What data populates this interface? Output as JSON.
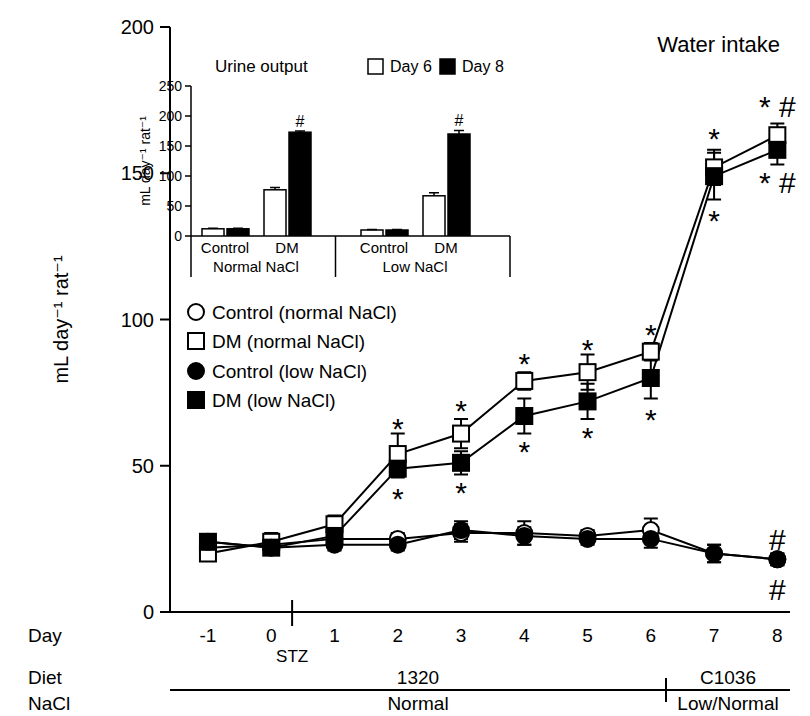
{
  "chart_data": [
    {
      "type": "line",
      "title": "Water intake",
      "y_label": "mL day⁻¹ rat⁻¹",
      "x_label": "Day",
      "x": [
        -1,
        0,
        1,
        2,
        3,
        4,
        5,
        6,
        7,
        8
      ],
      "xlim": [
        -1.6,
        8.2
      ],
      "xticks": [
        -1,
        0,
        1,
        2,
        3,
        4,
        5,
        6,
        7,
        8
      ],
      "ylim": [
        0,
        200
      ],
      "yticks": [
        0,
        50,
        100,
        150,
        200
      ],
      "legend": "left",
      "series": [
        {
          "name": "Control (normal NaCl)",
          "color": "#ffffff",
          "marker": "circle",
          "line_style": "solid",
          "values": [
            22,
            23,
            25,
            25,
            27,
            27,
            26,
            28,
            20,
            18
          ],
          "errors": [
            2,
            2,
            2,
            2,
            3,
            4,
            2,
            4,
            3,
            2
          ]
        },
        {
          "name": "DM (normal NaCl)",
          "color": "#ffffff",
          "marker": "square",
          "line_style": "solid",
          "values": [
            20,
            24,
            30,
            54,
            61,
            79,
            82,
            89,
            152,
            163
          ],
          "errors": [
            2,
            3,
            3,
            7,
            5,
            3,
            6,
            3,
            6,
            4
          ]
        },
        {
          "name": "Control (low NaCl)",
          "color": "#000000",
          "marker": "circle",
          "line_style": "solid",
          "values": [
            24,
            22,
            23,
            23,
            28,
            26,
            25,
            25,
            20,
            18
          ],
          "errors": [
            2,
            2,
            2,
            2,
            3,
            3,
            2,
            3,
            3,
            2
          ]
        },
        {
          "name": "DM (low NaCl)",
          "color": "#000000",
          "marker": "square",
          "line_style": "solid",
          "values": [
            24,
            22,
            26,
            49,
            51,
            67,
            72,
            80,
            149,
            158
          ],
          "errors": [
            2,
            2,
            2,
            3,
            4,
            6,
            6,
            7,
            8,
            5
          ]
        }
      ],
      "annotations": [
        {
          "text": "*",
          "x": 2,
          "y": 64
        },
        {
          "text": "*",
          "x": 3,
          "y": 70
        },
        {
          "text": "*",
          "x": 4,
          "y": 86
        },
        {
          "text": "*",
          "x": 5,
          "y": 91
        },
        {
          "text": "*",
          "x": 6,
          "y": 96
        },
        {
          "text": "*",
          "x": 7,
          "y": 163
        },
        {
          "text": "* #",
          "x": 8,
          "y": 174
        },
        {
          "text": "*",
          "x": 2,
          "y": 40
        },
        {
          "text": "*",
          "x": 3,
          "y": 42
        },
        {
          "text": "*",
          "x": 4,
          "y": 56
        },
        {
          "text": "*",
          "x": 5,
          "y": 61
        },
        {
          "text": "*",
          "x": 6,
          "y": 67
        },
        {
          "text": "*",
          "x": 7,
          "y": 135
        },
        {
          "text": "* #",
          "x": 8,
          "y": 148
        },
        {
          "text": "#",
          "x": 8,
          "y": 26
        },
        {
          "text": "#",
          "x": 8,
          "y": 9
        }
      ],
      "event": {
        "label": "STZ",
        "x": 0.33
      },
      "rows": [
        {
          "title": "Diet",
          "segments": [
            {
              "label": "1320",
              "start": -1.6,
              "end": 6.24
            },
            {
              "label": "C1036",
              "start": 6.24,
              "end": 8.2
            }
          ]
        },
        {
          "title": "NaCl",
          "segments": [
            {
              "label": "Normal",
              "start": -1.6,
              "end": 6.24
            },
            {
              "label": "Low/Normal",
              "start": 6.24,
              "end": 8.2
            }
          ]
        }
      ]
    },
    {
      "type": "bar",
      "title": "Urine output",
      "y_label": "mL day⁻¹ rat⁻¹",
      "categories": [
        "Control",
        "DM",
        "Control",
        "DM"
      ],
      "groups": [
        {
          "label": "Normal NaCl",
          "start": 0,
          "end": 1
        },
        {
          "label": "Low NaCl",
          "start": 2,
          "end": 3
        }
      ],
      "ylim": [
        0,
        250
      ],
      "yticks": [
        0,
        50,
        100,
        150,
        200,
        250
      ],
      "legend": "top",
      "series": [
        {
          "name": "Day 6",
          "color": "#ffffff",
          "values": [
            12,
            77,
            10,
            67
          ],
          "errors": [
            1,
            4,
            1,
            5
          ]
        },
        {
          "name": "Day 8",
          "color": "#000000",
          "values": [
            12,
            173,
            10,
            170
          ],
          "errors": [
            1,
            2,
            1,
            6
          ]
        }
      ],
      "annotations": [
        {
          "text": "#",
          "index": 1,
          "series": 1
        },
        {
          "text": "#",
          "index": 3,
          "series": 1
        }
      ]
    }
  ]
}
